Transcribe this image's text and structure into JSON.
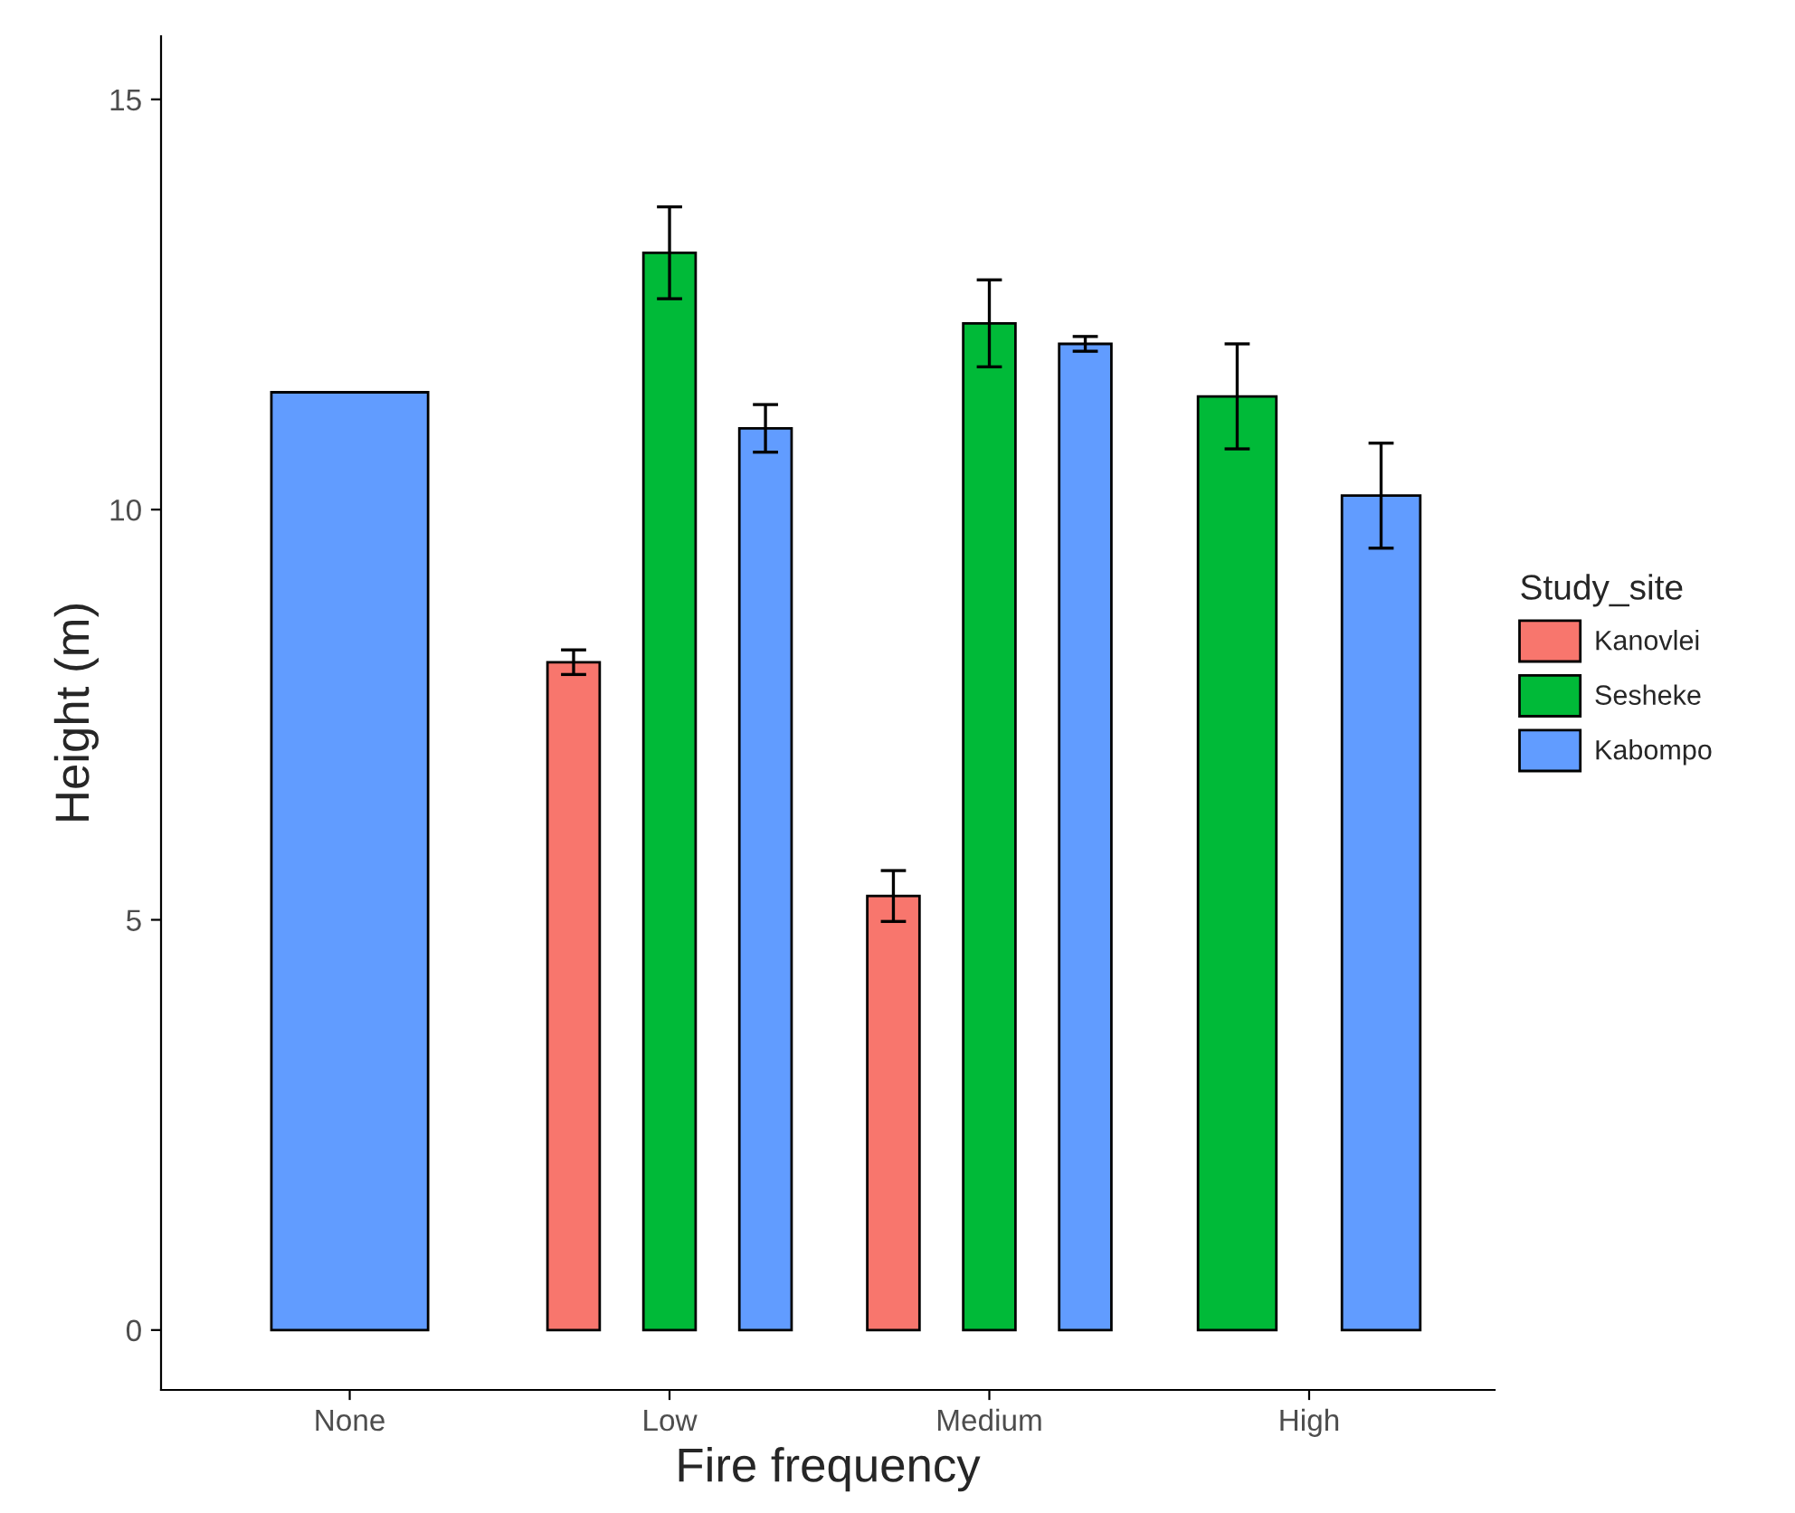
{
  "chart_data": {
    "type": "bar",
    "xlabel": "Fire frequency",
    "ylabel": "Height (m)",
    "legend_title": "Study_site",
    "categories": [
      "None",
      "Low",
      "Medium",
      "High"
    ],
    "series": [
      {
        "name": "Kanovlei",
        "color": "#f8766d",
        "values": [
          null,
          8.14,
          5.29,
          null
        ],
        "errors": [
          null,
          0.15,
          0.31,
          null
        ]
      },
      {
        "name": "Sesheke",
        "color": "#00ba38",
        "values": [
          null,
          13.13,
          12.27,
          11.38
        ],
        "errors": [
          null,
          0.56,
          0.53,
          0.64
        ]
      },
      {
        "name": "Kabompo",
        "color": "#619cff",
        "values": [
          11.43,
          10.99,
          12.02,
          10.17
        ],
        "errors": [
          null,
          0.29,
          0.09,
          0.64
        ]
      }
    ],
    "ylim": [
      -0.73,
      15.77
    ],
    "yticks": [
      0,
      5,
      10,
      15
    ],
    "grid": false,
    "legend": "right"
  }
}
